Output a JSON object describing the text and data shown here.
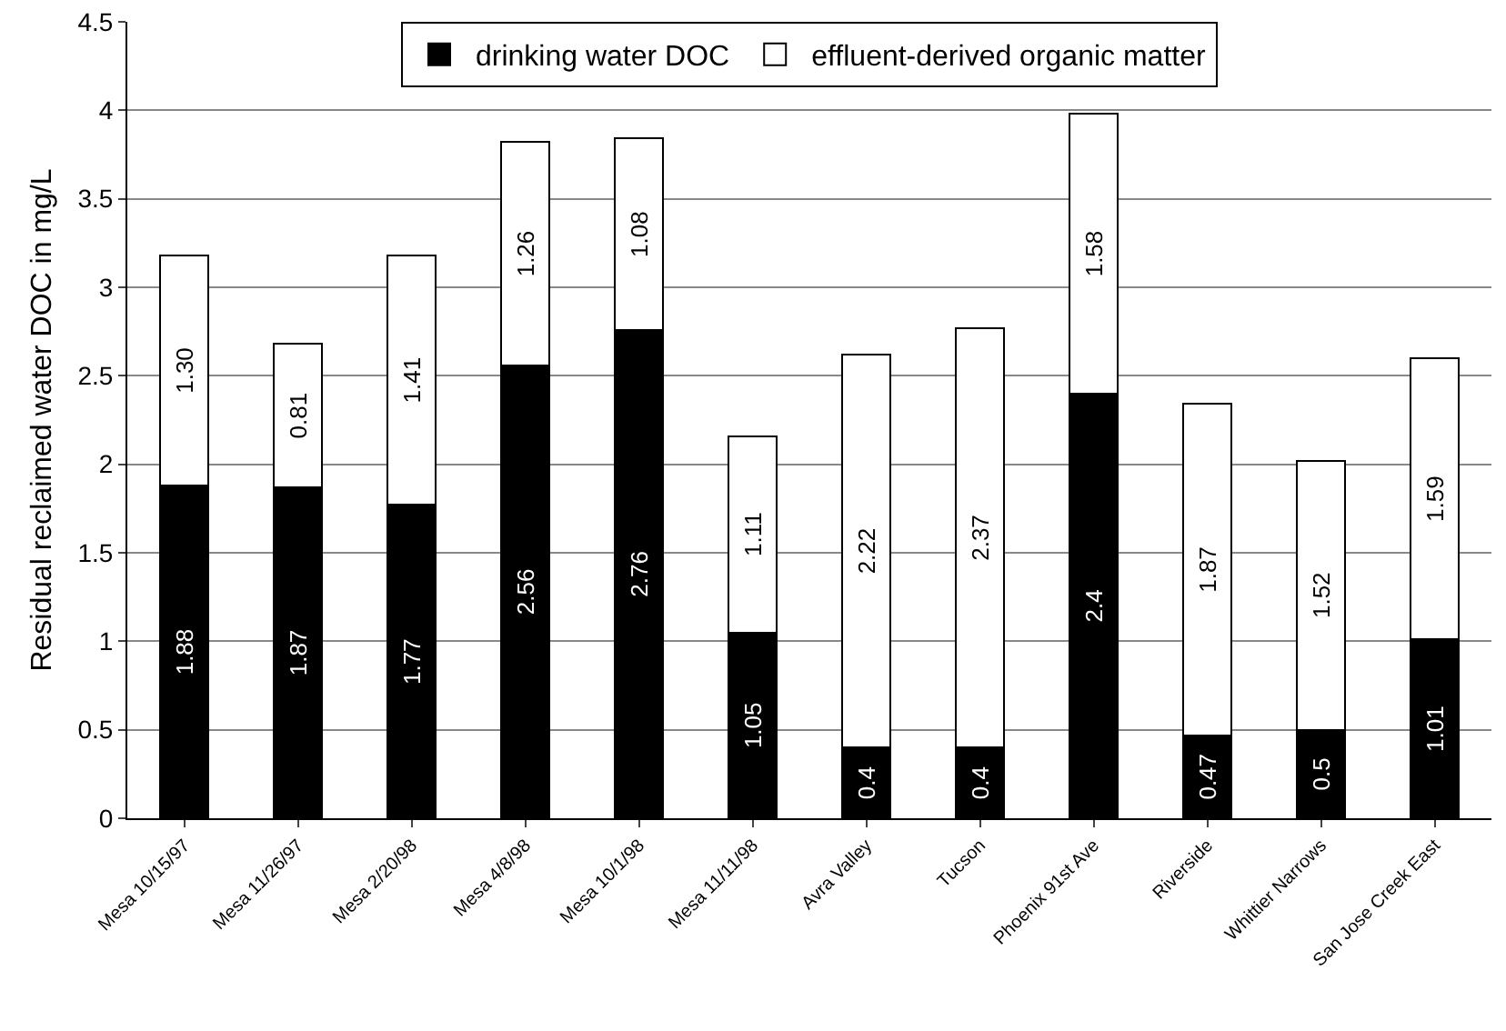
{
  "chart_data": {
    "type": "bar",
    "stacked": true,
    "ylabel": "Residual reclaimed water DOC in mg/L",
    "categories": [
      "Mesa 10/15/97",
      "Mesa 11/26/97",
      "Mesa 2/20/98",
      "Mesa 4/8/98",
      "Mesa 10/1/98",
      "Mesa 11/11/98",
      "Avra Valley",
      "Tucson",
      "Phoenix 91st Ave",
      "Riverside",
      "Whittier Narrows",
      "San Jose Creek East"
    ],
    "series": [
      {
        "name": "drinking water DOC",
        "color": "#000000",
        "values": [
          1.88,
          1.87,
          1.77,
          2.56,
          2.76,
          1.05,
          0.4,
          0.4,
          2.4,
          0.47,
          0.5,
          1.01
        ],
        "value_labels": [
          "1.88",
          "1.87",
          "1.77",
          "2.56",
          "2.76",
          "1.05",
          "0.4",
          "0.4",
          "2.4",
          "0.47",
          "0.5",
          "1.01"
        ]
      },
      {
        "name": "effluent-derived organic matter",
        "color": "#ffffff",
        "values": [
          1.3,
          0.81,
          1.41,
          1.26,
          1.08,
          1.11,
          2.22,
          2.37,
          1.58,
          1.87,
          1.52,
          1.59
        ],
        "value_labels": [
          "1.30",
          "0.81",
          "1.41",
          "1.26",
          "1.08",
          "1.11",
          "2.22",
          "2.37",
          "1.58",
          "1.87",
          "1.52",
          "1.59"
        ]
      }
    ],
    "ylim": [
      0,
      4.5
    ],
    "yticks": [
      0,
      0.5,
      1,
      1.5,
      2,
      2.5,
      3,
      3.5,
      4,
      4.5
    ],
    "grid": "y",
    "legend": "top"
  }
}
